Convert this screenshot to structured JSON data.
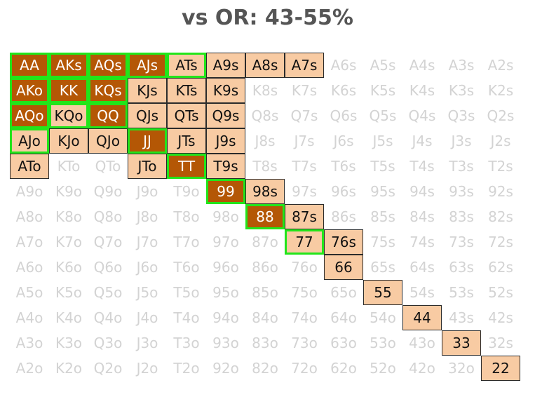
{
  "title": "vs OR: 43-55%",
  "colors": {
    "raise": "#b45705",
    "call": "#f8cba3",
    "highlight": "#22e51a",
    "inactive_text": "#d3d3d3"
  },
  "ranks": [
    "A",
    "K",
    "Q",
    "J",
    "T",
    "9",
    "8",
    "7",
    "6",
    "5",
    "4",
    "3",
    "2"
  ],
  "grid": [
    [
      "AA",
      "AKs",
      "AQs",
      "AJs",
      "ATs",
      "A9s",
      "A8s",
      "A7s",
      "A6s",
      "A5s",
      "A4s",
      "A3s",
      "A2s"
    ],
    [
      "AKo",
      "KK",
      "KQs",
      "KJs",
      "KTs",
      "K9s",
      "K8s",
      "K7s",
      "K6s",
      "K5s",
      "K4s",
      "K3s",
      "K2s"
    ],
    [
      "AQo",
      "KQo",
      "QQ",
      "QJs",
      "QTs",
      "Q9s",
      "Q8s",
      "Q7s",
      "Q6s",
      "Q5s",
      "Q4s",
      "Q3s",
      "Q2s"
    ],
    [
      "AJo",
      "KJo",
      "QJo",
      "JJ",
      "JTs",
      "J9s",
      "J8s",
      "J7s",
      "J6s",
      "J5s",
      "J4s",
      "J3s",
      "J2s"
    ],
    [
      "ATo",
      "KTo",
      "QTo",
      "JTo",
      "TT",
      "T9s",
      "T8s",
      "T7s",
      "T6s",
      "T5s",
      "T4s",
      "T3s",
      "T2s"
    ],
    [
      "A9o",
      "K9o",
      "Q9o",
      "J9o",
      "T9o",
      "99",
      "98s",
      "97s",
      "96s",
      "95s",
      "94s",
      "93s",
      "92s"
    ],
    [
      "A8o",
      "K8o",
      "Q8o",
      "J8o",
      "T8o",
      "98o",
      "88",
      "87s",
      "86s",
      "85s",
      "84s",
      "83s",
      "82s"
    ],
    [
      "A7o",
      "K7o",
      "Q7o",
      "J7o",
      "T7o",
      "97o",
      "87o",
      "77",
      "76s",
      "75s",
      "74s",
      "73s",
      "72s"
    ],
    [
      "A6o",
      "K6o",
      "Q6o",
      "J6o",
      "T6o",
      "96o",
      "86o",
      "76o",
      "66",
      "65s",
      "64s",
      "63s",
      "62s"
    ],
    [
      "A5o",
      "K5o",
      "Q5o",
      "J5o",
      "T5o",
      "95o",
      "85o",
      "75o",
      "65o",
      "55",
      "54s",
      "53s",
      "52s"
    ],
    [
      "A4o",
      "K4o",
      "Q4o",
      "J4o",
      "T4o",
      "94o",
      "84o",
      "74o",
      "64o",
      "54o",
      "44",
      "43s",
      "42s"
    ],
    [
      "A3o",
      "K3o",
      "Q3o",
      "J3o",
      "T3o",
      "93o",
      "83o",
      "73o",
      "63o",
      "53o",
      "43o",
      "33",
      "32s"
    ],
    [
      "A2o",
      "K2o",
      "Q2o",
      "J2o",
      "T2o",
      "92o",
      "82o",
      "72o",
      "62o",
      "52o",
      "42o",
      "32o",
      "22"
    ]
  ],
  "raise_hands": [
    "AA",
    "AKs",
    "AQs",
    "AJs",
    "AKo",
    "KK",
    "KQs",
    "AQo",
    "QQ",
    "JJ",
    "TT",
    "99",
    "88"
  ],
  "call_hands": [
    "ATs",
    "A9s",
    "A8s",
    "A7s",
    "KJs",
    "KTs",
    "K9s",
    "KQo",
    "QJs",
    "QTs",
    "Q9s",
    "AJo",
    "KJo",
    "QJo",
    "JTs",
    "J9s",
    "ATo",
    "JTo",
    "T9s",
    "98s",
    "87s",
    "77",
    "76s",
    "66",
    "55",
    "44",
    "33",
    "22"
  ],
  "highlighted_hands": [
    "AA",
    "AKs",
    "AQs",
    "AJs",
    "ATs",
    "AKo",
    "KK",
    "KQs",
    "AQo",
    "KQo",
    "QQ",
    "AJo",
    "JJ",
    "TT",
    "99",
    "88",
    "77"
  ]
}
